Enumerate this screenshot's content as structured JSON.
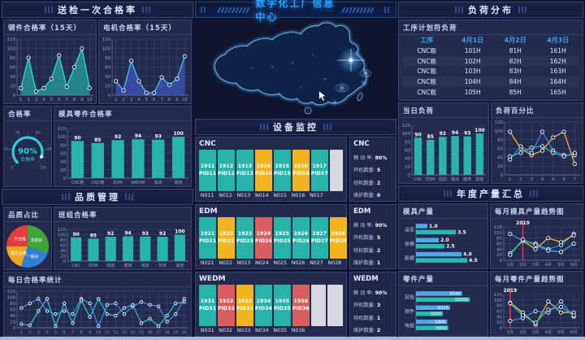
{
  "left": {
    "header": "送检一次合格率",
    "quality_header": "品质管理"
  },
  "center": {
    "title": "数字化工厂信息中心",
    "monitor_header": "设备监控",
    "stats_labels": [
      "稼 动 率:",
      "开机数量:",
      "待机数量:",
      "维护数量:"
    ],
    "groups": [
      {
        "name": "CNC",
        "slots": 8,
        "stats": [
          "80%",
          "5",
          "2",
          "0"
        ],
        "machines": [
          {
            "id": "1911",
            "pid": "PID11",
            "n": "N011",
            "status": "run"
          },
          {
            "id": "1912",
            "pid": "PID12",
            "n": "N012",
            "status": "run"
          },
          {
            "id": "1913",
            "pid": "PID13",
            "n": "N013",
            "status": "run"
          },
          {
            "id": "1914",
            "pid": "PID14",
            "n": "N014",
            "status": "warn"
          },
          {
            "id": "1915",
            "pid": "PID15",
            "n": "N015",
            "status": "run"
          },
          {
            "id": "1916",
            "pid": "PID16",
            "n": "N016",
            "status": "warn"
          },
          {
            "id": "1917",
            "pid": "PID17",
            "n": "N017",
            "status": "run"
          }
        ]
      },
      {
        "name": "EDM",
        "slots": 8,
        "stats": [
          "90%",
          "5",
          "2",
          "1"
        ],
        "machines": [
          {
            "id": "1921",
            "pid": "PID21",
            "n": "N021",
            "status": "run"
          },
          {
            "id": "1922",
            "pid": "PID22",
            "n": "N022",
            "status": "warn"
          },
          {
            "id": "1923",
            "pid": "PID23",
            "n": "N023",
            "status": "run"
          },
          {
            "id": "1924",
            "pid": "PID24",
            "n": "N024",
            "status": "alarm"
          },
          {
            "id": "1925",
            "pid": "PID25",
            "n": "N025",
            "status": "run"
          },
          {
            "id": "1926",
            "pid": "PID26",
            "n": "N026",
            "status": "run"
          },
          {
            "id": "1927",
            "pid": "PID27",
            "n": "N027",
            "status": "run"
          },
          {
            "id": "1928",
            "pid": "PID28",
            "n": "N028",
            "status": "warn"
          }
        ]
      },
      {
        "name": "WEDM",
        "slots": 8,
        "stats": [
          "90%",
          "3",
          "1",
          "2"
        ],
        "machines": [
          {
            "id": "1931",
            "pid": "PID31",
            "n": "N031",
            "status": "run"
          },
          {
            "id": "1932",
            "pid": "PID32",
            "n": "N032",
            "status": "alarm"
          },
          {
            "id": "1933",
            "pid": "PID33",
            "n": "N033",
            "status": "warn"
          },
          {
            "id": "1934",
            "pid": "PID34",
            "n": "N034",
            "status": "run"
          },
          {
            "id": "1935",
            "pid": "PID35",
            "n": "N035",
            "status": "run"
          },
          {
            "id": "1936",
            "pid": "PID36",
            "n": "N036",
            "status": "alarm"
          }
        ]
      }
    ],
    "status_colors": {
      "run": "#27b3aa",
      "warn": "#f2b41f",
      "alarm": "#d85f5f",
      "empty": "#d6d9e0"
    }
  },
  "right": {
    "header": "负荷分布",
    "annual_header": "年度产量汇总",
    "plan_table": {
      "title": "工序计划符负荷",
      "columns": [
        "工序",
        "4月1日",
        "4月2日",
        "4月3日"
      ],
      "rows": [
        [
          "CNC粗",
          "101H",
          "81H",
          "161H"
        ],
        [
          "CNC粗",
          "102H",
          "82H",
          "162H"
        ],
        [
          "CNC粗",
          "103H",
          "83H",
          "163H"
        ],
        [
          "CNC粗",
          "104H",
          "84H",
          "164H"
        ],
        [
          "CNC粗",
          "105H",
          "85H",
          "165H"
        ]
      ]
    }
  },
  "chart_data": {
    "steel": {
      "type": "area",
      "title": "钢件合格率（15天）",
      "x": [
        "1",
        "2",
        "3",
        "4",
        "5",
        "6",
        "7",
        "8",
        "9",
        "10"
      ],
      "values": [
        15,
        80,
        8,
        15,
        35,
        85,
        18,
        60,
        100,
        15
      ],
      "ylim": [
        0,
        120
      ],
      "line_color": "#2ee0cf",
      "fill_color": "rgba(35,185,175,0.62)"
    },
    "motor": {
      "type": "area",
      "title": "电机合格率（15天）",
      "x": [
        "1",
        "2",
        "3",
        "4",
        "5",
        "6",
        "7",
        "8",
        "9",
        "10"
      ],
      "values": [
        30,
        10,
        73,
        30,
        5,
        5,
        38,
        22,
        35,
        83
      ],
      "ylim": [
        0,
        120
      ],
      "line_color": "#3fc6f0",
      "fill_color": "rgba(72,96,226,0.55)"
    },
    "gauge": {
      "type": "gauge",
      "title": "合格率",
      "value": 90,
      "max": 100,
      "label": "90%",
      "sublabel": "合格率",
      "color": "#2bd0d8"
    },
    "mold_parts": {
      "type": "bar",
      "title": "模具零件合格率",
      "categories": [
        "CNC粗",
        "CNC精",
        "EDM",
        "WEDM",
        "铣床",
        "磨床"
      ],
      "values": [
        90,
        85,
        92,
        94,
        93,
        100
      ],
      "ylim": [
        0,
        120
      ],
      "color": "#28b3ac"
    },
    "quality_pie": {
      "type": "pie",
      "title": "品质占比",
      "slices": [
        {
          "label": "非常好",
          "value": 30,
          "color": "#3fa636"
        },
        {
          "label": "一般好",
          "value": 25,
          "color": "#2e7fd5"
        },
        {
          "label": "基本合格",
          "value": 20,
          "color": "#f0a81e"
        },
        {
          "label": "不合格",
          "value": 25,
          "color": "#e23d3d"
        }
      ]
    },
    "team": {
      "type": "bar",
      "title": "班组合格率",
      "categories": [
        "CNC",
        "EDM",
        "线割",
        "磨床",
        "铣床",
        "外协",
        "其他"
      ],
      "values": [
        90,
        85,
        92,
        94,
        93,
        92,
        100
      ],
      "ylim": [
        0,
        120
      ],
      "color": "#28b3ac"
    },
    "daily": {
      "type": "line",
      "title": "每日合格率统计",
      "x": [
        "1",
        "2",
        "3",
        "4",
        "5",
        "6",
        "7",
        "8",
        "9",
        "10",
        "11",
        "12",
        "13",
        "14",
        "15",
        "16",
        "17",
        "18",
        "19",
        "20"
      ],
      "ylim": [
        0,
        120
      ],
      "series": [
        {
          "color": "#3f86e8",
          "values": [
            65,
            80,
            95,
            55,
            45,
            55,
            45,
            95,
            80,
            5,
            75,
            80,
            45,
            70,
            85,
            75,
            70,
            20,
            45,
            95
          ]
        },
        {
          "color": "#23c3c9",
          "values": [
            12,
            8,
            55,
            95,
            5,
            80,
            15,
            90,
            35,
            95,
            45,
            40,
            65,
            75,
            15,
            30,
            5,
            40,
            80,
            85
          ]
        }
      ]
    },
    "today_load": {
      "type": "bar",
      "title": "当日负荷",
      "categories": [
        "CNC",
        "EDM",
        "线割",
        "铣床",
        "磨床",
        "其他"
      ],
      "values": [
        90,
        85,
        92,
        94,
        93,
        100
      ],
      "ylim": [
        0,
        120
      ],
      "color": "#28b3ac"
    },
    "load_pct": {
      "type": "line",
      "title": "负荷百分比",
      "x": [
        "1",
        "2",
        "3",
        "4",
        "5",
        "6",
        "7"
      ],
      "ylim": [
        0,
        120
      ],
      "series": [
        {
          "color": "#f5b921",
          "values": [
            98,
            60,
            45,
            55,
            85,
            98,
            25
          ]
        },
        {
          "color": "#3f86e8",
          "values": [
            35,
            65,
            50,
            98,
            55,
            45,
            45
          ]
        },
        {
          "color": "#23c3c9",
          "values": [
            42,
            50,
            62,
            65,
            50,
            42,
            50
          ]
        }
      ]
    },
    "mold_output": {
      "type": "hbar",
      "title": "模具产量",
      "categories": [
        "设变",
        "修模",
        "新模"
      ],
      "xlim": [
        0,
        5.2
      ],
      "labels": "out",
      "series": [
        {
          "color": "#4fa8e8",
          "values": [
            "1.0",
            "2.0",
            "4.0"
          ]
        },
        {
          "color": "#27b9b2",
          "values": [
            "3.5",
            "2.5",
            "4.5"
          ]
        }
      ]
    },
    "mold_trend": {
      "type": "line",
      "title": "每月模具产量趋势图",
      "x": [
        "1月",
        "2月",
        "3月",
        "4月",
        "5月",
        "6月"
      ],
      "ylim": [
        0,
        120
      ],
      "vline": {
        "index": 1,
        "label": "2019"
      },
      "series": [
        {
          "color": "#3f86e8",
          "values": [
            95,
            70,
            60,
            40,
            55,
            95
          ]
        },
        {
          "color": "#f5b921",
          "values": [
            25,
            70,
            40,
            80,
            65,
            90
          ]
        },
        {
          "color": "#23c3c9",
          "values": [
            20,
            75,
            55,
            35,
            30,
            60
          ]
        }
      ]
    },
    "parts_output": {
      "type": "hbar",
      "title": "零件产量",
      "categories": [
        "其他",
        "钢件",
        "电极"
      ],
      "xlim": [
        0,
        11000
      ],
      "labels": "in",
      "series": [
        {
          "color": "#4fa8e8",
          "values": [
            "8544",
            "6325",
            "5800"
          ]
        },
        {
          "color": "#27b9b2",
          "values": [
            "10000",
            "5000",
            "6000"
          ]
        }
      ]
    },
    "parts_trend": {
      "type": "line",
      "title": "每月零件产量趋势图",
      "x": [
        "1月",
        "2月",
        "3月",
        "4月",
        "5月",
        "6月"
      ],
      "ylim": [
        0,
        120
      ],
      "vline": {
        "index": 0,
        "label": "2019"
      },
      "series": [
        {
          "color": "#f5b921",
          "values": [
            90,
            55,
            12,
            95,
            55,
            55
          ]
        },
        {
          "color": "#3f86e8",
          "values": [
            25,
            35,
            60,
            55,
            95,
            40
          ]
        },
        {
          "color": "#23c3c9",
          "values": [
            88,
            45,
            18,
            65,
            75,
            45
          ]
        }
      ]
    }
  }
}
